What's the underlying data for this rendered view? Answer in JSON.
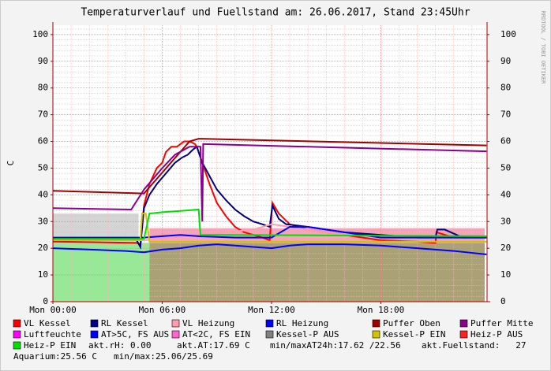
{
  "chart_data": {
    "type": "line",
    "title": "Temperaturverlauf und Fuellstand am: 26.06.2017, Stand 23:45Uhr",
    "y_label": "C",
    "side_label": "RRDTOOL / TOBI OETIKER",
    "xlim": [
      0,
      23.83
    ],
    "xticks": [
      {
        "value": 0,
        "label": "Mon 00:00"
      },
      {
        "value": 6,
        "label": "Mon 06:00"
      },
      {
        "value": 12,
        "label": "Mon 12:00"
      },
      {
        "value": 18,
        "label": "Mon 18:00"
      }
    ],
    "minor_xticks": [
      1,
      2,
      3,
      4,
      5,
      7,
      8,
      9,
      10,
      11,
      13,
      14,
      15,
      16,
      17,
      19,
      20,
      21,
      22,
      23
    ],
    "ylim": [
      0,
      103.5
    ],
    "yticks": [
      0,
      10,
      20,
      30,
      40,
      50,
      60,
      70,
      80,
      90,
      100
    ],
    "y2lim": [
      0,
      103.5
    ],
    "y2ticks": [
      0,
      10,
      20,
      30,
      40,
      50,
      60,
      70,
      80,
      90,
      100
    ],
    "minor_yticks": [
      2,
      4,
      6,
      8,
      12,
      14,
      16,
      18,
      22,
      24,
      26,
      28,
      32,
      34,
      36,
      38,
      42,
      44,
      46,
      48,
      52,
      54,
      56,
      58,
      62,
      64,
      66,
      68,
      72,
      74,
      76,
      78,
      82,
      84,
      86,
      88,
      92,
      94,
      96,
      98,
      102
    ],
    "grid": true,
    "areas": [
      {
        "color": "#d4d4d4",
        "x": [
          0,
          4.7
        ],
        "values": [
          33,
          33
        ]
      },
      {
        "color": "#98e898",
        "x": [
          0,
          5.3
        ],
        "values": [
          22,
          22
        ]
      },
      {
        "color": "#f4a4b8",
        "x": [
          5.3,
          23.7
        ],
        "values": [
          27.5,
          27.5
        ]
      },
      {
        "color": "#aaa276",
        "x": [
          5.3,
          23.7
        ],
        "values": [
          22,
          22
        ]
      }
    ],
    "series": [
      {
        "name": "VL Kessel",
        "color": "#ff0000",
        "x": [
          0,
          4.6,
          4.8,
          5.0,
          5.3,
          5.7,
          6.0,
          6.2,
          6.5,
          6.8,
          7.2,
          7.5,
          7.8,
          7.9,
          8.2,
          8.6,
          9.0,
          9.5,
          10,
          10.5,
          11,
          11.5,
          11.9,
          12.05,
          12.4,
          13,
          14,
          16,
          18,
          20,
          21,
          21.05,
          22,
          23.8
        ],
        "values": [
          22.5,
          22,
          21.5,
          36,
          44,
          50,
          52,
          56,
          58,
          58,
          60,
          60,
          59,
          58,
          52,
          44,
          37,
          32,
          28,
          26,
          25,
          24,
          23,
          37,
          33,
          29,
          27,
          25,
          23,
          22.5,
          22,
          26,
          24,
          24
        ]
      },
      {
        "name": "RL Kessel",
        "color": "#000080",
        "x": [
          0,
          4.6,
          4.8,
          5.0,
          5.3,
          5.7,
          6.2,
          6.7,
          7.1,
          7.4,
          7.7,
          7.9,
          8.2,
          8.6,
          9,
          9.5,
          10,
          10.5,
          11,
          11.5,
          11.9,
          12.05,
          12.4,
          12.8,
          14,
          16,
          18,
          20,
          21,
          21.1,
          21.5,
          22.5,
          23.8
        ],
        "values": [
          23.5,
          23,
          20.5,
          35,
          40,
          44,
          48,
          52,
          54,
          55,
          57,
          58,
          52,
          47,
          42,
          38,
          34.5,
          32,
          30,
          29,
          28,
          36,
          31,
          29,
          28,
          26,
          25,
          24,
          24,
          27,
          27,
          24,
          24
        ]
      },
      {
        "name": "VL Heizung",
        "color": "#ff9cb0",
        "x": [
          0,
          5,
          8,
          11,
          12,
          13,
          16,
          20,
          23.8
        ],
        "values": [
          23,
          23,
          25,
          27,
          29,
          28,
          25,
          24,
          24
        ]
      },
      {
        "name": "RL Heizung",
        "color": "#0000ff",
        "x": [
          0,
          5,
          6,
          7,
          8,
          10,
          12,
          13,
          14,
          16,
          18,
          20,
          23.8
        ],
        "values": [
          24,
          24,
          24.5,
          25,
          24.5,
          24,
          24,
          28,
          28,
          26,
          24,
          24,
          24
        ]
      },
      {
        "name": "Puffer Oben",
        "color": "#a00000",
        "x": [
          0,
          5,
          7.5,
          8,
          23.8
        ],
        "values": [
          41.5,
          40.5,
          60,
          61,
          58.5
        ]
      },
      {
        "name": "Puffer Mitte",
        "color": "#8b008b",
        "x": [
          0,
          4.3,
          5,
          6,
          6.7,
          7.5,
          8,
          8.1,
          8.2,
          8.25,
          8.3,
          23.8
        ],
        "values": [
          35,
          34.5,
          42,
          50,
          55,
          58,
          58,
          58,
          30,
          59,
          59,
          56.3
        ]
      },
      {
        "name": "Luftfeuchte",
        "color": "#ff00ff",
        "x": [],
        "values": []
      },
      {
        "name": "AT>5C, FS AUS",
        "color": "#0000ff",
        "x": [
          0,
          4,
          5,
          6,
          7,
          8,
          9,
          10,
          11,
          12,
          13,
          14,
          16,
          18,
          20,
          22,
          23.8
        ],
        "values": [
          20,
          19,
          18.5,
          19.5,
          20,
          21,
          21.5,
          21,
          20.5,
          20,
          21,
          21.5,
          21.5,
          21,
          20,
          19,
          17.7
        ]
      },
      {
        "name": "AT<2C, FS EIN",
        "color": "#ff66cc",
        "x": [],
        "values": []
      },
      {
        "name": "Kessel-P AUS",
        "color": "#808080",
        "x": [],
        "values": []
      },
      {
        "name": "Kessel-P EIN",
        "color": "#d0c400",
        "x": [
          0,
          4.8,
          4.9,
          5.1,
          5.3,
          23.8
        ],
        "values": [
          23,
          23,
          33,
          33,
          22.5,
          22.5
        ]
      },
      {
        "name": "Heiz-P AUS",
        "color": "#ff2020",
        "x": [],
        "values": []
      },
      {
        "name": "Heiz-P EIN",
        "color": "#00e000",
        "x": [
          0,
          5,
          5.3,
          6,
          7,
          8,
          8.1,
          10,
          23.8
        ],
        "values": [
          23.5,
          23.5,
          33,
          33.5,
          34,
          34.5,
          25,
          25,
          24.5
        ]
      }
    ],
    "notes": [
      "akt.rH: 0.00",
      "akt.AT:17.69 C",
      "min/maxAT24h:17.62 /22.56",
      "akt.Fuellstand:   27",
      "Aquarium:25.56 C",
      "min/max:25.06/25.69"
    ]
  }
}
